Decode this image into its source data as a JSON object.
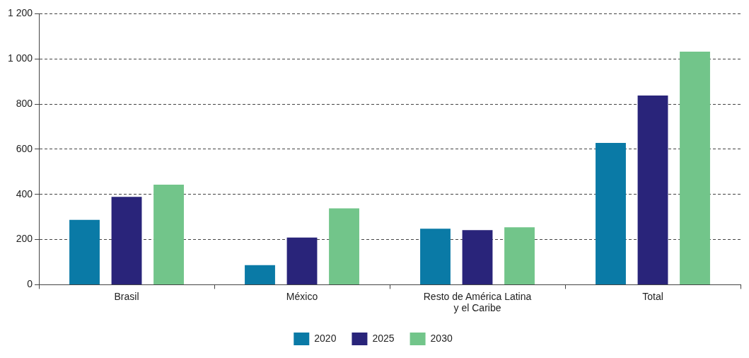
{
  "chart_data": {
    "type": "bar",
    "categories": [
      "Brasil",
      "México",
      "Resto de América Latina y el Caribe",
      "Total"
    ],
    "series": [
      {
        "name": "2020",
        "color": "#0a7aa6",
        "values": [
          287,
          87,
          248,
          628
        ]
      },
      {
        "name": "2025",
        "color": "#29247a",
        "values": [
          389,
          209,
          242,
          838
        ]
      },
      {
        "name": "2030",
        "color": "#72c58a",
        "values": [
          443,
          338,
          254,
          1032
        ]
      }
    ],
    "ylim": [
      0,
      1200
    ],
    "yticks": [
      0,
      200,
      400,
      600,
      800,
      {
        "value": 1000,
        "label": "1 000"
      },
      {
        "value": 1200,
        "label": "1 200"
      }
    ],
    "grid": "y",
    "line_style": "dashed",
    "legend": "bottom"
  }
}
